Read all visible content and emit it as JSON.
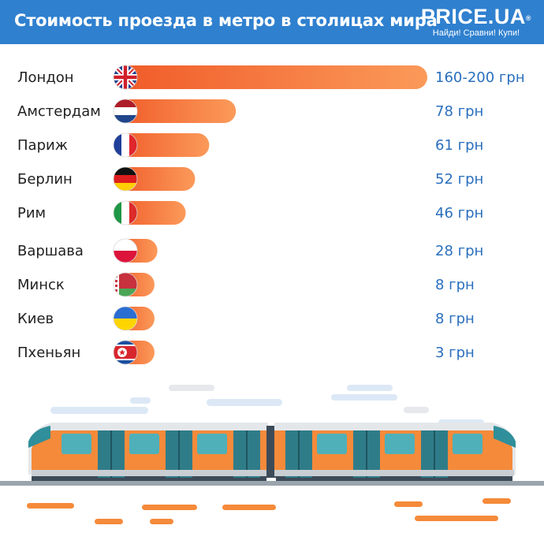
{
  "header": {
    "title": "Стоимость проезда в метро в столицах мира",
    "logo": {
      "brand": "PRICE.UA",
      "reg": "®",
      "tagline": "Найди! Сравни! Купи!"
    }
  },
  "colors": {
    "header_bg": "#2f80cf",
    "bar_start": "#f05a28",
    "bar_end": "#fb9a5a",
    "value_text": "#2a6fbd"
  },
  "chart_data": {
    "type": "bar",
    "orientation": "horizontal",
    "categories": [
      "Лондон",
      "Амстердам",
      "Париж",
      "Берлин",
      "Рим",
      "Варшава",
      "Минск",
      "Киев",
      "Пхеньян"
    ],
    "values": [
      200,
      78,
      61,
      52,
      46,
      28,
      8,
      8,
      3
    ],
    "value_labels": [
      "160-200 грн",
      "78 грн",
      "61 грн",
      "52 грн",
      "46 грн",
      "28 грн",
      "8 грн",
      "8 грн",
      "3 грн"
    ],
    "flags": [
      "uk-flag",
      "netherlands-flag",
      "france-flag",
      "germany-flag",
      "italy-flag",
      "poland-flag",
      "belarus-flag",
      "ukraine-flag",
      "north-korea-flag"
    ],
    "unit": "грн",
    "title": "Стоимость проезда в метро в столицах мира",
    "xlabel": "",
    "ylabel": "",
    "grid": false,
    "legend": "none"
  }
}
